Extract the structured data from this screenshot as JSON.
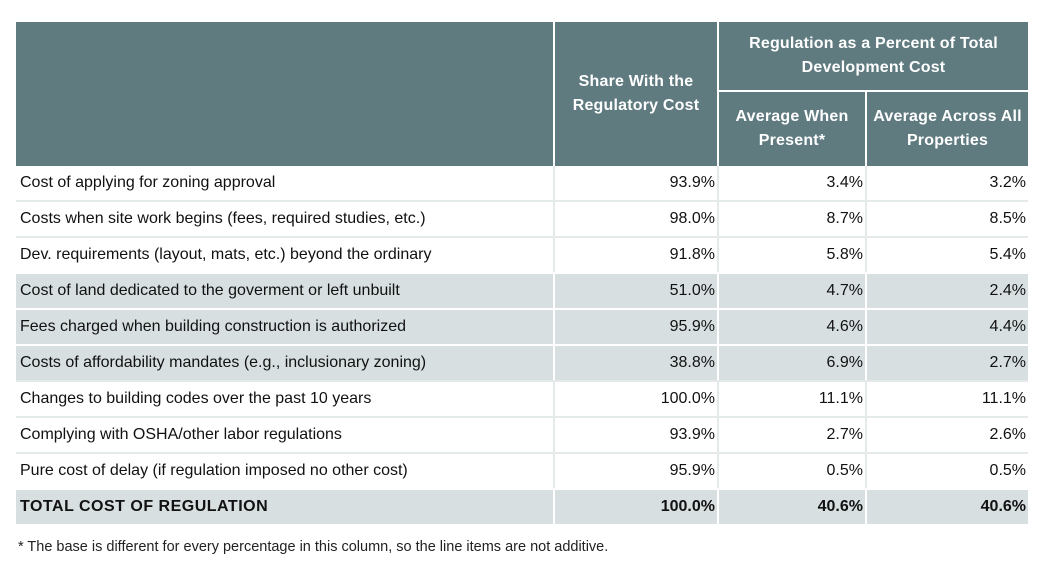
{
  "table": {
    "header": {
      "col_share": "Share With the Regulatory Cost",
      "group_label": "Regulation as a Percent of Total Development Cost",
      "col_avg_present": "Average When Present*",
      "col_avg_all": "Average Across All Properties"
    },
    "rows": [
      {
        "label": "Cost of applying for zoning approval",
        "share": "93.9%",
        "avg_present": "3.4%",
        "avg_all": "3.2%"
      },
      {
        "label": "Costs when site work begins (fees, required studies, etc.)",
        "share": "98.0%",
        "avg_present": "8.7%",
        "avg_all": "8.5%"
      },
      {
        "label": "Dev. requirements (layout, mats, etc.) beyond the ordinary",
        "share": "91.8%",
        "avg_present": "5.8%",
        "avg_all": "5.4%"
      },
      {
        "label": "Cost of land dedicated to the goverment or left unbuilt",
        "share": "51.0%",
        "avg_present": "4.7%",
        "avg_all": "2.4%"
      },
      {
        "label": "Fees charged when building construction is authorized",
        "share": "95.9%",
        "avg_present": "4.6%",
        "avg_all": "4.4%"
      },
      {
        "label": "Costs of affordability mandates (e.g., inclusionary zoning)",
        "share": "38.8%",
        "avg_present": "6.9%",
        "avg_all": "2.7%"
      },
      {
        "label": "Changes to building codes over the past 10 years",
        "share": "100.0%",
        "avg_present": "11.1%",
        "avg_all": "11.1%"
      },
      {
        "label": "Complying with OSHA/other labor regulations",
        "share": "93.9%",
        "avg_present": "2.7%",
        "avg_all": "2.6%"
      },
      {
        "label": "Pure cost of delay (if regulation imposed no other cost)",
        "share": "95.9%",
        "avg_present": "0.5%",
        "avg_all": "0.5%"
      }
    ],
    "total": {
      "label": "TOTAL COST OF REGULATION",
      "share": "100.0%",
      "avg_present": "40.6%",
      "avg_all": "40.6%"
    }
  },
  "footnote": "* The base is different for every percentage in this column, so the line items are not additive.",
  "colors": {
    "header_bg": "#5f7b80",
    "shaded_row_bg": "#d7dfe1"
  }
}
